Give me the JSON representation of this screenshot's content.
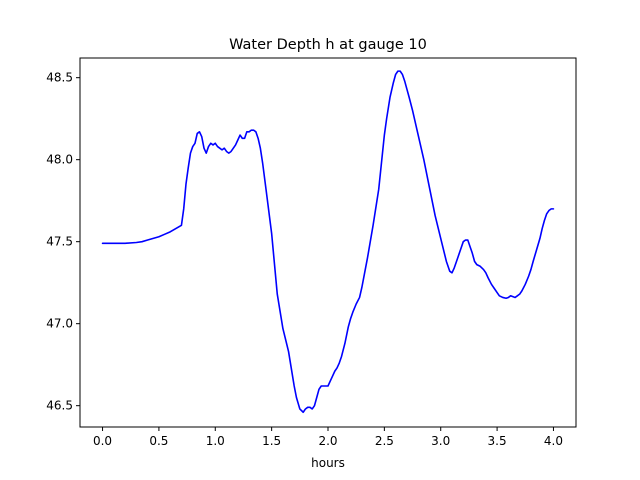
{
  "chart_data": {
    "type": "line",
    "title": "Water Depth h at gauge 10",
    "xlabel": "hours",
    "ylabel": "",
    "xlim": [
      -0.2,
      4.2
    ],
    "ylim": [
      46.37,
      48.62
    ],
    "xticks": [
      0.0,
      0.5,
      1.0,
      1.5,
      2.0,
      2.5,
      3.0,
      3.5,
      4.0
    ],
    "xtick_labels": [
      "0.0",
      "0.5",
      "1.0",
      "1.5",
      "2.0",
      "2.5",
      "3.0",
      "3.5",
      "4.0"
    ],
    "yticks": [
      46.5,
      47.0,
      47.5,
      48.0,
      48.5
    ],
    "ytick_labels": [
      "46.5",
      "47.0",
      "47.5",
      "48.0",
      "48.5"
    ],
    "grid": false,
    "legend": "none",
    "series": [
      {
        "color": "#0000ff",
        "x": [
          0.0,
          0.1,
          0.2,
          0.3,
          0.35,
          0.4,
          0.45,
          0.5,
          0.55,
          0.6,
          0.65,
          0.7,
          0.72,
          0.74,
          0.76,
          0.78,
          0.8,
          0.82,
          0.84,
          0.86,
          0.88,
          0.9,
          0.92,
          0.94,
          0.96,
          0.98,
          1.0,
          1.02,
          1.04,
          1.06,
          1.08,
          1.1,
          1.12,
          1.14,
          1.16,
          1.18,
          1.2,
          1.22,
          1.24,
          1.26,
          1.28,
          1.3,
          1.32,
          1.34,
          1.36,
          1.38,
          1.4,
          1.42,
          1.45,
          1.5,
          1.55,
          1.6,
          1.65,
          1.7,
          1.72,
          1.75,
          1.78,
          1.8,
          1.82,
          1.84,
          1.86,
          1.88,
          1.9,
          1.92,
          1.94,
          1.96,
          1.98,
          2.0,
          2.02,
          2.04,
          2.06,
          2.08,
          2.1,
          2.12,
          2.15,
          2.18,
          2.2,
          2.22,
          2.25,
          2.28,
          2.3,
          2.35,
          2.4,
          2.45,
          2.5,
          2.52,
          2.55,
          2.58,
          2.6,
          2.62,
          2.64,
          2.66,
          2.68,
          2.7,
          2.72,
          2.75,
          2.8,
          2.85,
          2.9,
          2.95,
          3.0,
          3.05,
          3.08,
          3.1,
          3.12,
          3.15,
          3.18,
          3.2,
          3.22,
          3.24,
          3.26,
          3.28,
          3.3,
          3.32,
          3.35,
          3.38,
          3.4,
          3.42,
          3.45,
          3.48,
          3.5,
          3.52,
          3.55,
          3.58,
          3.6,
          3.62,
          3.64,
          3.66,
          3.68,
          3.7,
          3.72,
          3.75,
          3.78,
          3.8,
          3.82,
          3.85,
          3.88,
          3.9,
          3.92,
          3.94,
          3.96,
          3.98,
          4.0
        ],
        "y": [
          47.49,
          47.49,
          47.49,
          47.495,
          47.5,
          47.51,
          47.52,
          47.53,
          47.545,
          47.56,
          47.58,
          47.6,
          47.7,
          47.85,
          47.95,
          48.04,
          48.08,
          48.1,
          48.16,
          48.17,
          48.14,
          48.07,
          48.04,
          48.08,
          48.1,
          48.09,
          48.1,
          48.08,
          48.07,
          48.06,
          48.07,
          48.05,
          48.04,
          48.05,
          48.07,
          48.09,
          48.12,
          48.15,
          48.13,
          48.13,
          48.17,
          48.17,
          48.18,
          48.18,
          48.17,
          48.13,
          48.07,
          47.98,
          47.82,
          47.55,
          47.18,
          46.97,
          46.83,
          46.62,
          46.55,
          46.48,
          46.46,
          46.48,
          46.49,
          46.49,
          46.48,
          46.5,
          46.55,
          46.6,
          46.62,
          46.62,
          46.62,
          46.62,
          46.65,
          46.68,
          46.71,
          46.73,
          46.76,
          46.8,
          46.88,
          46.98,
          47.03,
          47.07,
          47.12,
          47.16,
          47.22,
          47.4,
          47.6,
          47.82,
          48.15,
          48.25,
          48.38,
          48.47,
          48.52,
          48.54,
          48.54,
          48.52,
          48.48,
          48.43,
          48.38,
          48.3,
          48.15,
          48.0,
          47.83,
          47.66,
          47.52,
          47.38,
          47.32,
          47.31,
          47.34,
          47.4,
          47.46,
          47.5,
          47.51,
          47.51,
          47.47,
          47.43,
          47.38,
          47.36,
          47.35,
          47.33,
          47.31,
          47.28,
          47.24,
          47.21,
          47.19,
          47.17,
          47.16,
          47.155,
          47.16,
          47.17,
          47.165,
          47.16,
          47.17,
          47.18,
          47.2,
          47.24,
          47.29,
          47.33,
          47.38,
          47.45,
          47.52,
          47.58,
          47.63,
          47.67,
          47.69,
          47.7,
          47.7
        ]
      }
    ]
  }
}
